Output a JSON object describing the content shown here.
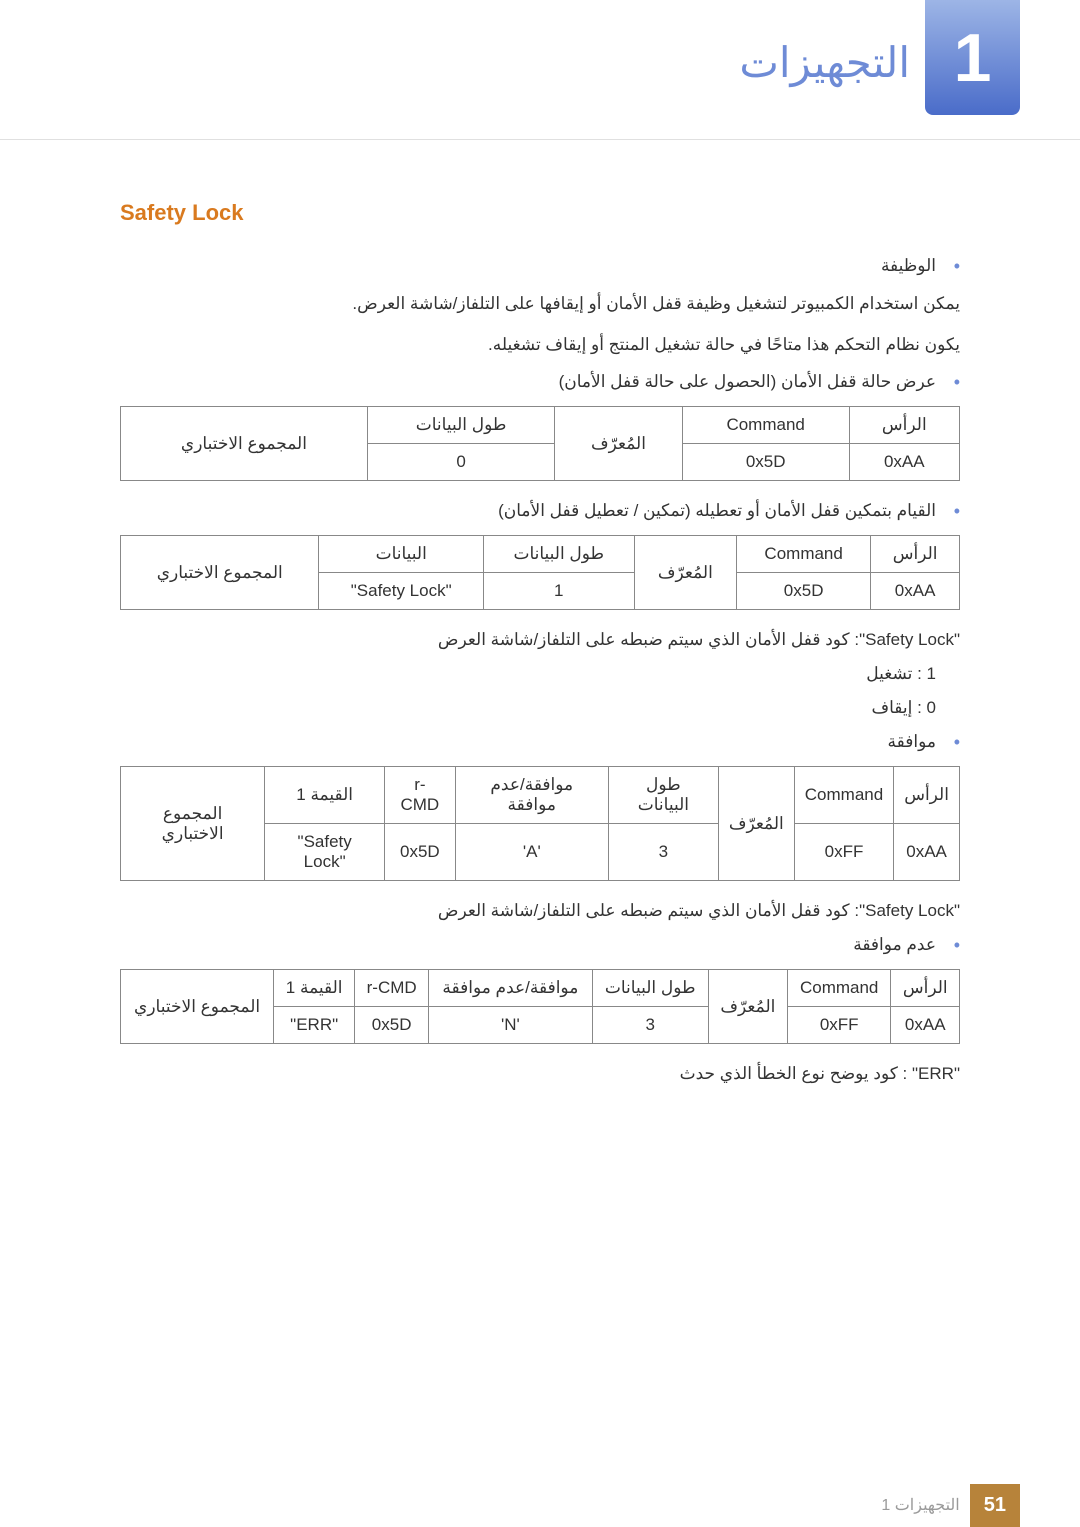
{
  "header": {
    "chapter_number": "1",
    "chapter_title": "التجهيزات"
  },
  "section": {
    "title": "Safety Lock",
    "bullet_function": "الوظيفة",
    "function_desc1": "يمكن استخدام الكمبيوتر لتشغيل وظيفة قفل الأمان أو إيقافها على التلفاز/شاشة العرض.",
    "function_desc2": "يكون نظام التحكم هذا متاحًا في حالة تشغيل المنتج أو إيقاف تشغيله.",
    "bullet_view": "عرض حالة قفل الأمان (الحصول على حالة قفل الأمان)",
    "bullet_set": "القيام بتمكين قفل الأمان أو تعطيله (تمكين / تعطيل قفل الأمان)",
    "note_lock_code": "\"Safety Lock\": كود قفل الأمان الذي سيتم ضبطه على التلفاز/شاشة العرض",
    "note_on": "1 : تشغيل",
    "note_off": "0 : إيقاف",
    "bullet_ack": "موافقة",
    "note_lock_code2": "\"Safety Lock\": كود قفل الأمان الذي سيتم ضبطه على التلفاز/شاشة العرض",
    "bullet_nak": "عدم موافقة",
    "note_err": "\"ERR\" : كود يوضح نوع الخطأ الذي حدث"
  },
  "table1": {
    "headers": {
      "header": "الرأس",
      "command": "Command",
      "id": "المُعرّف",
      "datalen": "طول البيانات",
      "checksum": "المجموع الاختباري"
    },
    "row": {
      "header": "0xAA",
      "command": "0x5D",
      "datalen": "0"
    }
  },
  "table2": {
    "headers": {
      "header": "الرأس",
      "command": "Command",
      "id": "المُعرّف",
      "datalen": "طول البيانات",
      "data": "البيانات",
      "checksum": "المجموع الاختباري"
    },
    "row": {
      "header": "0xAA",
      "command": "0x5D",
      "datalen": "1",
      "data": "\"Safety Lock\""
    }
  },
  "table3": {
    "headers": {
      "header": "الرأس",
      "command": "Command",
      "id": "المُعرّف",
      "datalen": "طول البيانات",
      "acknak": "موافقة/عدم موافقة",
      "rcmd": "r-CMD",
      "val1": "القيمة 1",
      "checksum": "المجموع الاختباري"
    },
    "row": {
      "header": "0xAA",
      "command": "0xFF",
      "datalen": "3",
      "acknak": "'A'",
      "rcmd": "0x5D",
      "val1": "\"Safety Lock\""
    }
  },
  "table4": {
    "headers": {
      "header": "الرأس",
      "command": "Command",
      "id": "المُعرّف",
      "datalen": "طول البيانات",
      "acknak": "موافقة/عدم موافقة",
      "rcmd": "r-CMD",
      "val1": "القيمة 1",
      "checksum": "المجموع الاختباري"
    },
    "row": {
      "header": "0xAA",
      "command": "0xFF",
      "datalen": "3",
      "acknak": "'N'",
      "rcmd": "0x5D",
      "val1": "\"ERR\""
    }
  },
  "footer": {
    "page_number": "51",
    "text": "1 التجهيزات"
  }
}
